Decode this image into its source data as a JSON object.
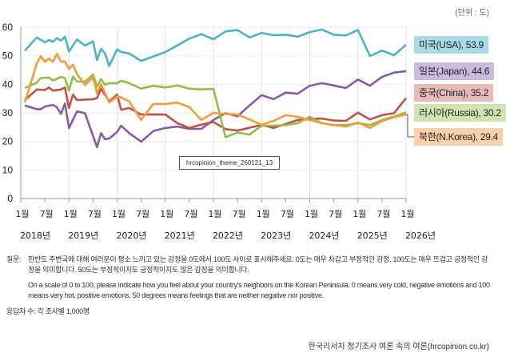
{
  "unit_label": "(단위 : 도)",
  "watermark": "hrcopinion_theme_260121_13",
  "footnote": {
    "question_label": "질문:",
    "question_ko": "한반도 주변국에 대해 여러분이 평소 느끼고 있는 감정을 0도에서 100도 사이로 표시해주세요. 0도는 매우 차갑고 부정적인 감정, 100도는 매우 뜨겁고 긍정적인 감정을 의미합니다. 50도는 부정적이지도 긍정적이지도 않은 감정을 의미합니다.",
    "question_en": "On a scale of 0 to 100, please indicate how you feel about your country's neighbors on the Korean Peninsula. 0 means very cold, negative emotions and 100 means very hot, positive emotions. 50 degrees means feelings that are neither negative nor positive.",
    "respondents": "응답자 수: 각 조사별 1,000명"
  },
  "source": "한국리서치 정기조사 여론 속의 여론(hrcopinion.co.kr)",
  "chart_data": {
    "type": "line",
    "title": "",
    "xlabel": "",
    "ylabel": "",
    "ylim": [
      0,
      60
    ],
    "yticks": [
      0,
      10,
      20,
      30,
      40,
      50,
      60
    ],
    "xlim": [
      "2018-01",
      "2026-01"
    ],
    "x_month_ticks": [
      "1월",
      "7월",
      "1월",
      "7월",
      "1월",
      "7월",
      "1월",
      "7월",
      "1월",
      "7월",
      "1월",
      "7월",
      "1월",
      "7월",
      "1월",
      "7월",
      "1월"
    ],
    "x_year_ticks": [
      "2018년",
      "2019년",
      "2020년",
      "2021년",
      "2022년",
      "2023년",
      "2024년",
      "2025년",
      "2026년"
    ],
    "grid": true,
    "legend_placement": "right (end labels)",
    "series": [
      {
        "name": "미국(USA)",
        "end_label": "미국(USA), 53.9",
        "color": "#4bb3cc",
        "label_bg": "#a8dbe8",
        "points": [
          [
            "2018-02",
            51.8
          ],
          [
            "2018-05",
            56.4
          ],
          [
            "2018-07",
            54.7
          ],
          [
            "2018-08",
            55.5
          ],
          [
            "2018-09",
            54.9
          ],
          [
            "2018-10",
            56.2
          ],
          [
            "2018-11",
            55.3
          ],
          [
            "2018-12",
            56.7
          ],
          [
            "2019-01",
            51.5
          ],
          [
            "2019-03",
            55.7
          ],
          [
            "2019-05",
            53.6
          ],
          [
            "2019-07",
            55.0
          ],
          [
            "2019-08",
            48.5
          ],
          [
            "2019-09",
            52.5
          ],
          [
            "2019-10",
            50.8
          ],
          [
            "2019-11",
            46.4
          ],
          [
            "2020-01",
            52.2
          ],
          [
            "2020-02",
            51.3
          ],
          [
            "2020-04",
            50.8
          ],
          [
            "2020-07",
            48.2
          ],
          [
            "2021-01",
            51.3
          ],
          [
            "2021-04",
            53.6
          ],
          [
            "2021-07",
            56.0
          ],
          [
            "2021-10",
            57.6
          ],
          [
            "2022-01",
            55.8
          ],
          [
            "2022-04",
            58.5
          ],
          [
            "2022-07",
            59.0
          ],
          [
            "2022-10",
            56.4
          ],
          [
            "2023-01",
            58.0
          ],
          [
            "2023-04",
            57.2
          ],
          [
            "2023-07",
            57.4
          ],
          [
            "2023-10",
            56.7
          ],
          [
            "2024-01",
            58.3
          ],
          [
            "2024-04",
            59.2
          ],
          [
            "2024-07",
            57.4
          ],
          [
            "2024-10",
            57.1
          ],
          [
            "2025-01",
            59.0
          ],
          [
            "2025-04",
            49.9
          ],
          [
            "2025-07",
            51.8
          ],
          [
            "2025-10",
            50.2
          ],
          [
            "2026-01",
            53.9
          ]
        ]
      },
      {
        "name": "일본(Japan)",
        "end_label": "일본(Japan), 44.6",
        "color": "#8a5aa8",
        "label_bg": "#cbbbe0",
        "points": [
          [
            "2018-02",
            32.6
          ],
          [
            "2018-05",
            31.3
          ],
          [
            "2018-06",
            31.3
          ],
          [
            "2018-07",
            32.2
          ],
          [
            "2018-09",
            32.8
          ],
          [
            "2018-10",
            32.0
          ],
          [
            "2018-11",
            29.6
          ],
          [
            "2018-12",
            33.3
          ],
          [
            "2019-01",
            24.7
          ],
          [
            "2019-03",
            30.5
          ],
          [
            "2019-05",
            29.9
          ],
          [
            "2019-08",
            18.0
          ],
          [
            "2019-09",
            22.9
          ],
          [
            "2019-10",
            20.8
          ],
          [
            "2019-11",
            21.0
          ],
          [
            "2020-01",
            23.3
          ],
          [
            "2020-02",
            25.5
          ],
          [
            "2020-04",
            22.9
          ],
          [
            "2020-07",
            19.9
          ],
          [
            "2020-10",
            23.6
          ],
          [
            "2021-01",
            24.7
          ],
          [
            "2021-04",
            25.2
          ],
          [
            "2021-07",
            24.4
          ],
          [
            "2021-10",
            24.4
          ],
          [
            "2022-01",
            27.5
          ],
          [
            "2022-04",
            29.9
          ],
          [
            "2022-07",
            28.8
          ],
          [
            "2022-10",
            32.6
          ],
          [
            "2023-01",
            36.2
          ],
          [
            "2023-04",
            34.8
          ],
          [
            "2023-07",
            37.1
          ],
          [
            "2023-10",
            36.7
          ],
          [
            "2024-01",
            39.5
          ],
          [
            "2024-04",
            40.4
          ],
          [
            "2024-07",
            39.6
          ],
          [
            "2024-10",
            38.7
          ],
          [
            "2025-01",
            41.7
          ],
          [
            "2025-04",
            39.5
          ],
          [
            "2025-07",
            42.6
          ],
          [
            "2025-10",
            44.1
          ],
          [
            "2026-01",
            44.6
          ]
        ]
      },
      {
        "name": "중국(China)",
        "end_label": "중국(China), 35.2",
        "color": "#c0504d",
        "label_bg": "#e8baba",
        "points": [
          [
            "2018-02",
            34.5
          ],
          [
            "2018-05",
            38.2
          ],
          [
            "2018-07",
            38.0
          ],
          [
            "2018-08",
            38.9
          ],
          [
            "2018-09",
            37.8
          ],
          [
            "2018-11",
            38.2
          ],
          [
            "2018-12",
            38.9
          ],
          [
            "2019-01",
            31.7
          ],
          [
            "2019-02",
            36.4
          ],
          [
            "2019-03",
            34.5
          ],
          [
            "2019-07",
            34.8
          ],
          [
            "2019-08",
            35.2
          ],
          [
            "2019-09",
            38.5
          ],
          [
            "2019-11",
            34.0
          ],
          [
            "2020-01",
            36.4
          ],
          [
            "2020-02",
            31.1
          ],
          [
            "2020-04",
            31.7
          ],
          [
            "2020-07",
            29.4
          ],
          [
            "2021-01",
            29.4
          ],
          [
            "2021-04",
            26.4
          ],
          [
            "2021-07",
            24.7
          ],
          [
            "2021-10",
            25.9
          ],
          [
            "2022-01",
            26.8
          ],
          [
            "2022-04",
            24.3
          ],
          [
            "2022-07",
            23.8
          ],
          [
            "2023-01",
            25.8
          ],
          [
            "2023-04",
            24.7
          ],
          [
            "2023-07",
            26.1
          ],
          [
            "2023-10",
            27.5
          ],
          [
            "2024-01",
            27.8
          ],
          [
            "2024-04",
            28.0
          ],
          [
            "2024-07",
            27.3
          ],
          [
            "2024-10",
            27.2
          ],
          [
            "2025-01",
            30.1
          ],
          [
            "2025-04",
            27.7
          ],
          [
            "2025-07",
            29.2
          ],
          [
            "2025-10",
            29.9
          ],
          [
            "2026-01",
            35.2
          ]
        ]
      },
      {
        "name": "러시아(Russia)",
        "end_label": "러시아(Russia), 30.2",
        "color": "#8fbf45",
        "label_bg": "#d0e4b2",
        "points": [
          [
            "2018-02",
            38.7
          ],
          [
            "2018-05",
            40.6
          ],
          [
            "2018-06",
            42.2
          ],
          [
            "2018-08",
            42.4
          ],
          [
            "2018-09",
            41.3
          ],
          [
            "2018-11",
            42.6
          ],
          [
            "2018-12",
            42.2
          ],
          [
            "2019-01",
            37.8
          ],
          [
            "2019-02",
            42.7
          ],
          [
            "2019-03",
            41.0
          ],
          [
            "2019-05",
            40.9
          ],
          [
            "2019-07",
            43.4
          ],
          [
            "2019-08",
            39.2
          ],
          [
            "2019-09",
            41.8
          ],
          [
            "2019-10",
            39.8
          ],
          [
            "2019-11",
            40.4
          ],
          [
            "2020-01",
            40.4
          ],
          [
            "2020-02",
            41.3
          ],
          [
            "2020-04",
            40.4
          ],
          [
            "2020-07",
            38.5
          ],
          [
            "2020-10",
            39.5
          ],
          [
            "2021-01",
            38.9
          ],
          [
            "2021-04",
            39.6
          ],
          [
            "2021-07",
            38.5
          ],
          [
            "2021-10",
            38.2
          ],
          [
            "2022-01",
            38.4
          ],
          [
            "2022-04",
            21.5
          ],
          [
            "2022-07",
            23.1
          ],
          [
            "2022-10",
            22.4
          ],
          [
            "2023-01",
            25.5
          ],
          [
            "2023-04",
            25.5
          ],
          [
            "2023-07",
            25.7
          ],
          [
            "2023-10",
            26.4
          ],
          [
            "2024-01",
            28.6
          ],
          [
            "2024-04",
            26.4
          ],
          [
            "2024-07",
            25.8
          ],
          [
            "2024-10",
            25.7
          ],
          [
            "2025-01",
            26.4
          ],
          [
            "2025-04",
            25.7
          ],
          [
            "2025-07",
            27.5
          ],
          [
            "2025-10",
            28.7
          ],
          [
            "2026-01",
            30.2
          ]
        ]
      },
      {
        "name": "북한(N.Korea)",
        "end_label": "북한(N.Korea), 29.4",
        "color": "#f79a3b",
        "label_bg": "#f9d0ab",
        "points": [
          [
            "2018-02",
            33.6
          ],
          [
            "2018-05",
            47.3
          ],
          [
            "2018-06",
            49.9
          ],
          [
            "2018-07",
            47.9
          ],
          [
            "2018-08",
            49.0
          ],
          [
            "2018-09",
            47.9
          ],
          [
            "2018-10",
            50.7
          ],
          [
            "2018-11",
            48.0
          ],
          [
            "2018-12",
            48.0
          ],
          [
            "2019-01",
            45.4
          ],
          [
            "2019-02",
            46.9
          ],
          [
            "2019-03",
            43.6
          ],
          [
            "2019-05",
            39.8
          ],
          [
            "2019-07",
            42.4
          ],
          [
            "2019-08",
            36.8
          ],
          [
            "2019-09",
            40.1
          ],
          [
            "2019-11",
            33.6
          ],
          [
            "2020-01",
            35.7
          ],
          [
            "2020-02",
            35.4
          ],
          [
            "2020-04",
            34.0
          ],
          [
            "2020-07",
            27.5
          ],
          [
            "2020-10",
            33.1
          ],
          [
            "2021-01",
            33.1
          ],
          [
            "2021-04",
            33.6
          ],
          [
            "2021-07",
            32.0
          ],
          [
            "2021-10",
            27.5
          ],
          [
            "2022-01",
            30.0
          ],
          [
            "2022-04",
            29.6
          ],
          [
            "2022-07",
            29.4
          ],
          [
            "2022-10",
            27.7
          ],
          [
            "2023-01",
            25.8
          ],
          [
            "2023-04",
            27.2
          ],
          [
            "2023-07",
            29.2
          ],
          [
            "2023-10",
            28.6
          ],
          [
            "2024-01",
            27.5
          ],
          [
            "2024-04",
            26.4
          ],
          [
            "2024-07",
            25.7
          ],
          [
            "2024-10",
            25.2
          ],
          [
            "2025-01",
            26.6
          ],
          [
            "2025-04",
            24.7
          ],
          [
            "2025-07",
            27.1
          ],
          [
            "2025-10",
            28.5
          ],
          [
            "2026-01",
            29.4
          ]
        ]
      }
    ]
  }
}
